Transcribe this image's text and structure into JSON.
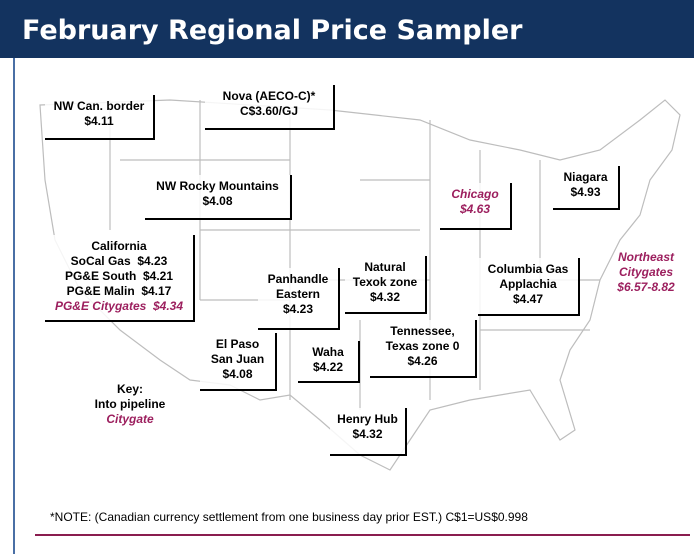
{
  "title": "February Regional Price Sampler",
  "labels": [
    {
      "lines": [
        "NW Can. border"
      ],
      "price": "$4.11"
    },
    {
      "lines": [
        "Nova (AECO-C)*"
      ],
      "price": "C$3.60/GJ"
    },
    {
      "lines": [
        "NW Rocky Mountains"
      ],
      "price": "$4.08"
    },
    {
      "lines": [
        "Chicago"
      ],
      "price": "$4.63",
      "citygate": true
    },
    {
      "lines": [
        "Niagara"
      ],
      "price": "$4.93"
    },
    {
      "lines": [
        "Northeast",
        "Citygates"
      ],
      "price": "$6.57-8.82",
      "citygate": true
    },
    {
      "lines": [
        "Columbia Gas",
        "Applachia"
      ],
      "price": "$4.47"
    },
    {
      "lines": [
        "Natural",
        "Texok zone"
      ],
      "price": "$4.32"
    },
    {
      "lines": [
        "Panhandle",
        "Eastern"
      ],
      "price": "$4.23"
    },
    {
      "lines": [
        "El Paso",
        "San Juan"
      ],
      "price": "$4.08"
    },
    {
      "lines": [
        "Waha"
      ],
      "price": "$4.22"
    },
    {
      "lines": [
        "Tennessee,",
        "Texas zone 0"
      ],
      "price": "$4.26"
    },
    {
      "lines": [
        "Henry Hub"
      ],
      "price": "$4.32"
    }
  ],
  "california": {
    "title": "California",
    "rows": [
      {
        "name": "SoCal Gas",
        "price": "$4.23"
      },
      {
        "name": "PG&E South",
        "price": "$4.21"
      },
      {
        "name": "PG&E Malin",
        "price": "$4.17"
      },
      {
        "name": "PG&E Citygates",
        "price": "$4.34",
        "citygate": true
      }
    ]
  },
  "key": {
    "title": "Key:",
    "pipeline": "Into pipeline",
    "citygate": "Citygate"
  },
  "note": "*NOTE: (Canadian currency settlement from one business day prior EST.) C$1=US$0.998"
}
